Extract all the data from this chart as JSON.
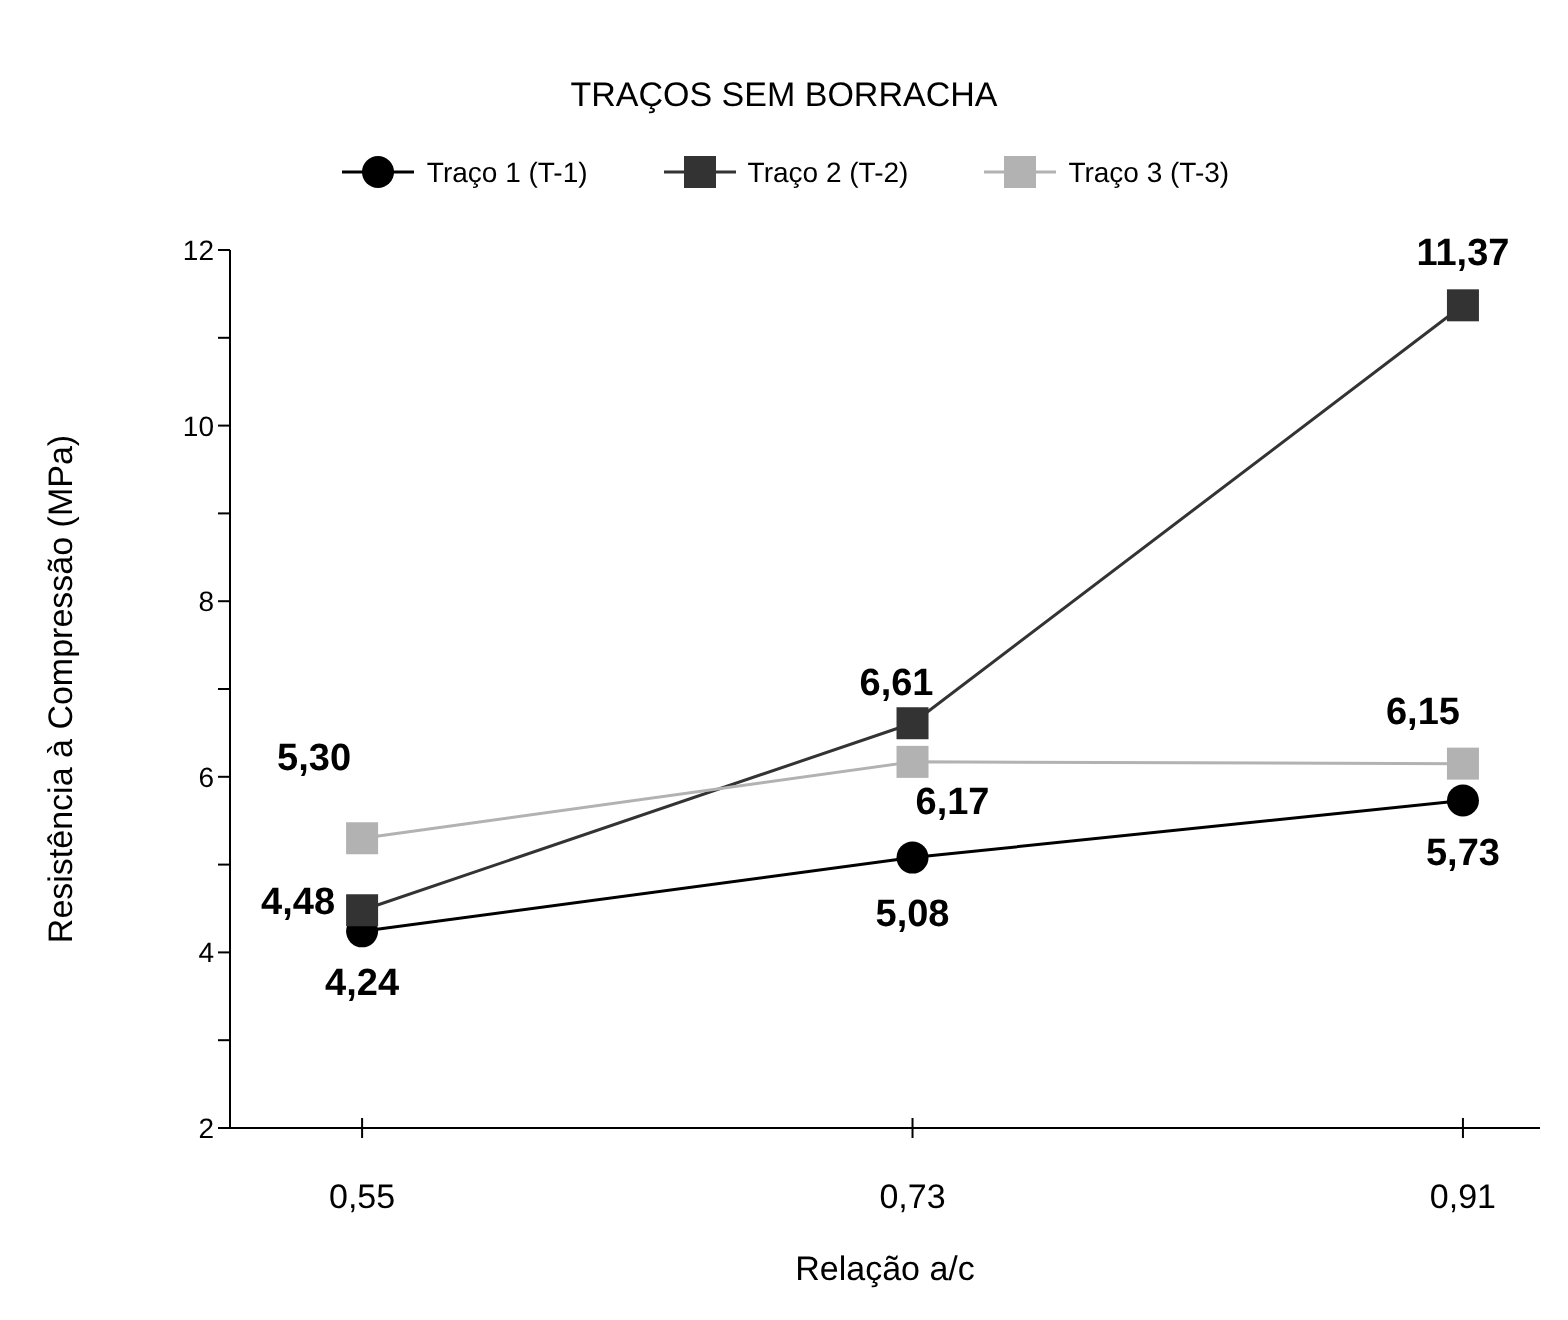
{
  "chart_data": {
    "type": "line",
    "title": "TRAÇOS SEM BORRACHA",
    "xlabel": "Relação a/c",
    "ylabel": "Resistência à Compressão (MPa)",
    "categories": [
      "0,55",
      "0,73",
      "0,91"
    ],
    "series": [
      {
        "name": "Traço 1 (T-1)",
        "color": "#000000",
        "marker": "circle",
        "values": [
          4.24,
          5.08,
          5.73
        ],
        "value_labels": [
          "4,24",
          "5,08",
          "5,73"
        ]
      },
      {
        "name": "Traço 2 (T-2)",
        "color": "#333333",
        "marker": "square",
        "values": [
          4.48,
          6.61,
          11.37
        ],
        "value_labels": [
          "4,48",
          "6,61",
          "11,37"
        ]
      },
      {
        "name": "Traço 3 (T-3)",
        "color": "#b2b2b2",
        "marker": "square",
        "values": [
          5.3,
          6.17,
          6.15
        ],
        "value_labels": [
          "5,30",
          "6,17",
          "6,15"
        ]
      }
    ],
    "ylim": [
      2,
      12
    ],
    "yticks": [
      2,
      {
        "value": 3,
        "label": null
      },
      4,
      {
        "value": 5,
        "label": null
      },
      6,
      {
        "value": 7,
        "label": null
      },
      8,
      {
        "value": 9,
        "label": null
      },
      10,
      {
        "value": 11,
        "label": null
      },
      12
    ],
    "legend": "top",
    "grid": false
  }
}
